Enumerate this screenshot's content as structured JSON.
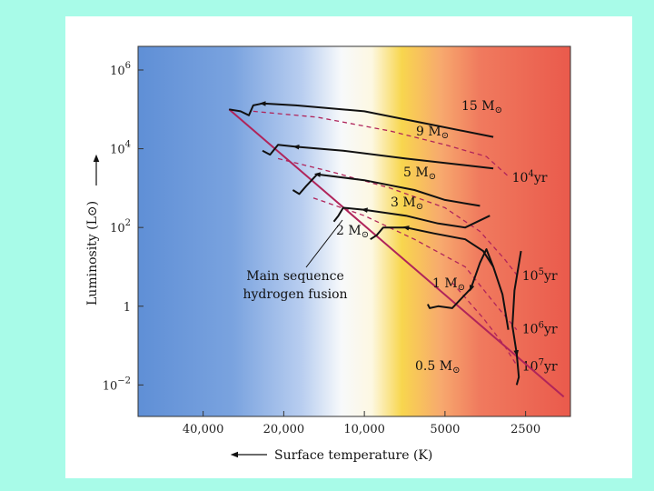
{
  "colors": {
    "background": "#a8fbe8",
    "panel": "#ffffff",
    "hot_blue": "#5f8fd6",
    "cool_red": "#ec5a4c",
    "main_sequence": "#b0245a",
    "isochrone": "#b0245a",
    "track": "#111111"
  },
  "chart_data": {
    "type": "line",
    "xlabel": "Surface temperature (K)",
    "ylabel": "Luminosity (L⊙)",
    "xscale": "log-reversed",
    "yscale": "log",
    "xlim": [
      70000,
      1700
    ],
    "ylim": [
      -2.8,
      6.6
    ],
    "x_ticks": [
      {
        "value": 40000,
        "label": "40,000"
      },
      {
        "value": 20000,
        "label": "20,000"
      },
      {
        "value": 10000,
        "label": "10,000"
      },
      {
        "value": 5000,
        "label": "5000"
      },
      {
        "value": 2500,
        "label": "2500"
      }
    ],
    "y_ticks": [
      {
        "exp": 6,
        "base": "10",
        "sup": "6"
      },
      {
        "exp": 4,
        "base": "10",
        "sup": "4"
      },
      {
        "exp": 2,
        "base": "10",
        "sup": "2"
      },
      {
        "exp": 0,
        "base": "1",
        "sup": ""
      },
      {
        "exp": -2,
        "base": "10",
        "sup": "−2"
      }
    ],
    "main_sequence": {
      "label_line1": "Main sequence",
      "label_line2": "hydrogen fusion",
      "points": [
        [
          32000,
          5.0
        ],
        [
          1800,
          -2.3
        ]
      ]
    },
    "tracks": [
      {
        "label": "15 M",
        "sun": "⊙",
        "points": [
          [
            3300,
            4.3
          ],
          [
            6000,
            4.65
          ],
          [
            10000,
            4.95
          ],
          [
            18000,
            5.1
          ],
          [
            24000,
            5.15
          ],
          [
            26000,
            5.1
          ],
          [
            27000,
            4.85
          ],
          [
            29000,
            4.95
          ],
          [
            32000,
            5.0
          ]
        ]
      },
      {
        "label": "9 M",
        "sun": "⊙",
        "points": [
          [
            3300,
            3.5
          ],
          [
            7000,
            3.75
          ],
          [
            12000,
            3.95
          ],
          [
            18000,
            4.05
          ],
          [
            21000,
            4.1
          ],
          [
            22500,
            3.85
          ],
          [
            24000,
            3.95
          ]
        ]
      },
      {
        "label": "5 M",
        "sun": "⊙",
        "points": [
          [
            3700,
            2.55
          ],
          [
            5000,
            2.7
          ],
          [
            6500,
            2.95
          ],
          [
            10000,
            3.2
          ],
          [
            15000,
            3.35
          ],
          [
            16500,
            3.05
          ],
          [
            17500,
            2.85
          ],
          [
            18500,
            2.95
          ]
        ]
      },
      {
        "label": "3 M",
        "sun": "⊙",
        "points": [
          [
            3400,
            2.3
          ],
          [
            4200,
            2.0
          ],
          [
            5300,
            2.1
          ],
          [
            7000,
            2.3
          ],
          [
            10000,
            2.45
          ],
          [
            12000,
            2.5
          ],
          [
            12500,
            2.3
          ],
          [
            13000,
            2.15
          ]
        ]
      },
      {
        "label": "2 M",
        "sun": "⊙",
        "points": [
          [
            3300,
            1.0
          ],
          [
            3600,
            1.4
          ],
          [
            4200,
            1.7
          ],
          [
            5500,
            1.85
          ],
          [
            7000,
            2.0
          ],
          [
            8500,
            2.0
          ],
          [
            9000,
            1.8
          ],
          [
            9500,
            1.7
          ]
        ]
      },
      {
        "label": "1 M",
        "sun": "⊙",
        "points": [
          [
            2900,
            -0.6
          ],
          [
            3050,
            0.3
          ],
          [
            3300,
            1.0
          ],
          [
            3500,
            1.45
          ],
          [
            3700,
            1.1
          ],
          [
            4000,
            0.45
          ],
          [
            4700,
            -0.05
          ],
          [
            5300,
            0.0
          ],
          [
            5700,
            -0.05
          ],
          [
            5800,
            0.05
          ]
        ]
      },
      {
        "label": "0.5 M",
        "sun": "⊙",
        "points": [
          [
            2600,
            1.4
          ],
          [
            2750,
            0.4
          ],
          [
            2800,
            -0.5
          ],
          [
            2700,
            -1.2
          ],
          [
            2650,
            -1.8
          ],
          [
            2700,
            -2.0
          ]
        ]
      }
    ],
    "isochrones": [
      {
        "label": "10",
        "sup": "4",
        "unit": "yr",
        "points": [
          [
            26000,
            4.95
          ],
          [
            15000,
            4.8
          ],
          [
            8000,
            4.45
          ],
          [
            5000,
            4.1
          ],
          [
            3500,
            3.8
          ],
          [
            2900,
            3.3
          ]
        ]
      },
      {
        "label": "10",
        "sup": "5",
        "unit": "yr",
        "points": [
          [
            21000,
            3.75
          ],
          [
            13000,
            3.4
          ],
          [
            8000,
            3.0
          ],
          [
            5000,
            2.5
          ],
          [
            3700,
            1.9
          ],
          [
            3000,
            1.2
          ],
          [
            2700,
            0.8
          ]
        ]
      },
      {
        "label": "10",
        "sup": "6",
        "unit": "yr",
        "points": [
          [
            15500,
            2.75
          ],
          [
            10000,
            2.3
          ],
          [
            6500,
            1.7
          ],
          [
            4200,
            1.0
          ],
          [
            3200,
            0.0
          ],
          [
            2700,
            -0.6
          ]
        ]
      },
      {
        "label": "10",
        "sup": "7",
        "unit": "yr",
        "points": [
          [
            4700,
            0.6
          ],
          [
            3600,
            -0.3
          ],
          [
            3000,
            -1.0
          ],
          [
            2700,
            -1.5
          ]
        ]
      }
    ]
  }
}
